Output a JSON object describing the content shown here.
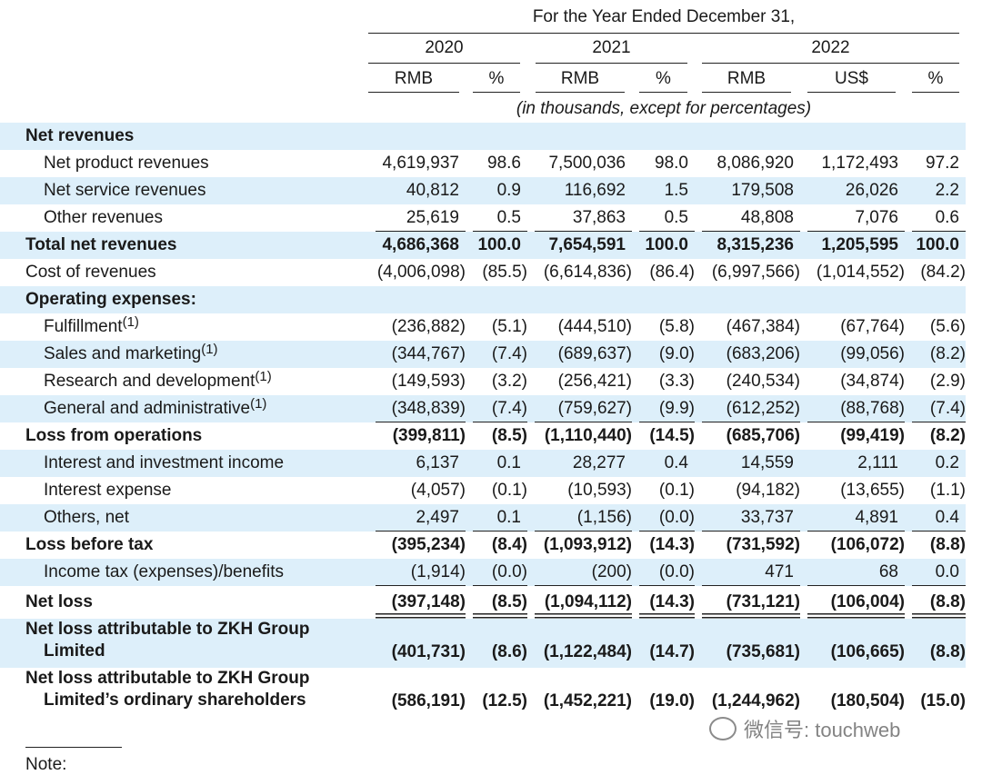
{
  "header": {
    "period": "For the Year Ended December 31,",
    "years": [
      "2020",
      "2021",
      "2022"
    ],
    "columns": [
      "RMB",
      "%",
      "RMB",
      "%",
      "RMB",
      "US$",
      "%"
    ],
    "unit_note": "(in thousands, except for percentages)"
  },
  "table": {
    "rows": [
      {
        "label": "Net revenues"
      },
      {
        "label": "Net product revenues",
        "values": [
          "4,619,937",
          "98.6",
          "7,500,036",
          "98.0",
          "8,086,920",
          "1,172,493",
          "97.2"
        ]
      },
      {
        "label": "Net service revenues",
        "values": [
          "40,812",
          "0.9",
          "116,692",
          "1.5",
          "179,508",
          "26,026",
          "2.2"
        ]
      },
      {
        "label": "Other revenues",
        "values": [
          "25,619",
          "0.5",
          "37,863",
          "0.5",
          "48,808",
          "7,076",
          "0.6"
        ]
      },
      {
        "label": "Total net revenues",
        "values": [
          "4,686,368",
          "100.0",
          "7,654,591",
          "100.0",
          "8,315,236",
          "1,205,595",
          "100.0"
        ]
      },
      {
        "label": "Cost of revenues",
        "values": [
          "(4,006,098)",
          "(85.5)",
          "(6,614,836)",
          "(86.4)",
          "(6,997,566)",
          "(1,014,552)",
          "(84.2)"
        ]
      },
      {
        "label": "Operating expenses:"
      },
      {
        "label": "Fulfillment",
        "note_ref": "(1)",
        "values": [
          "(236,882)",
          "(5.1)",
          "(444,510)",
          "(5.8)",
          "(467,384)",
          "(67,764)",
          "(5.6)"
        ]
      },
      {
        "label": "Sales and marketing",
        "note_ref": "(1)",
        "values": [
          "(344,767)",
          "(7.4)",
          "(689,637)",
          "(9.0)",
          "(683,206)",
          "(99,056)",
          "(8.2)"
        ]
      },
      {
        "label": "Research and development",
        "note_ref": "(1)",
        "values": [
          "(149,593)",
          "(3.2)",
          "(256,421)",
          "(3.3)",
          "(240,534)",
          "(34,874)",
          "(2.9)"
        ]
      },
      {
        "label": "General and administrative",
        "note_ref": "(1)",
        "values": [
          "(348,839)",
          "(7.4)",
          "(759,627)",
          "(9.9)",
          "(612,252)",
          "(88,768)",
          "(7.4)"
        ]
      },
      {
        "label": "Loss from operations",
        "values": [
          "(399,811)",
          "(8.5)",
          "(1,110,440)",
          "(14.5)",
          "(685,706)",
          "(99,419)",
          "(8.2)"
        ]
      },
      {
        "label": "Interest and investment income",
        "values": [
          "6,137",
          "0.1",
          "28,277",
          "0.4",
          "14,559",
          "2,111",
          "0.2"
        ]
      },
      {
        "label": "Interest expense",
        "values": [
          "(4,057)",
          "(0.1)",
          "(10,593)",
          "(0.1)",
          "(94,182)",
          "(13,655)",
          "(1.1)"
        ]
      },
      {
        "label": "Others, net",
        "values": [
          "2,497",
          "0.1",
          "(1,156)",
          "(0.0)",
          "33,737",
          "4,891",
          "0.4"
        ]
      },
      {
        "label": "Loss before tax",
        "values": [
          "(395,234)",
          "(8.4)",
          "(1,093,912)",
          "(14.3)",
          "(731,592)",
          "(106,072)",
          "(8.8)"
        ]
      },
      {
        "label": "Income tax (expenses)/benefits",
        "values": [
          "(1,914)",
          "(0.0)",
          "(200)",
          "(0.0)",
          "471",
          "68",
          "0.0"
        ]
      },
      {
        "label": "Net loss",
        "values": [
          "(397,148)",
          "(8.5)",
          "(1,094,112)",
          "(14.3)",
          "(731,121)",
          "(106,004)",
          "(8.8)"
        ]
      },
      {
        "label": "Net loss attributable to ZKH Group Limited",
        "values": [
          "(401,731)",
          "(8.6)",
          "(1,122,484)",
          "(14.7)",
          "(735,681)",
          "(106,665)",
          "(8.8)"
        ]
      },
      {
        "label": "Net loss attributable to ZKH Group Limited’s ordinary shareholders",
        "values": [
          "(586,191)",
          "(12.5)",
          "(1,452,221)",
          "(19.0)",
          "(1,244,962)",
          "(180,504)",
          "(15.0)"
        ]
      }
    ]
  },
  "note": "Note:",
  "watermark": "微信号: touchweb"
}
